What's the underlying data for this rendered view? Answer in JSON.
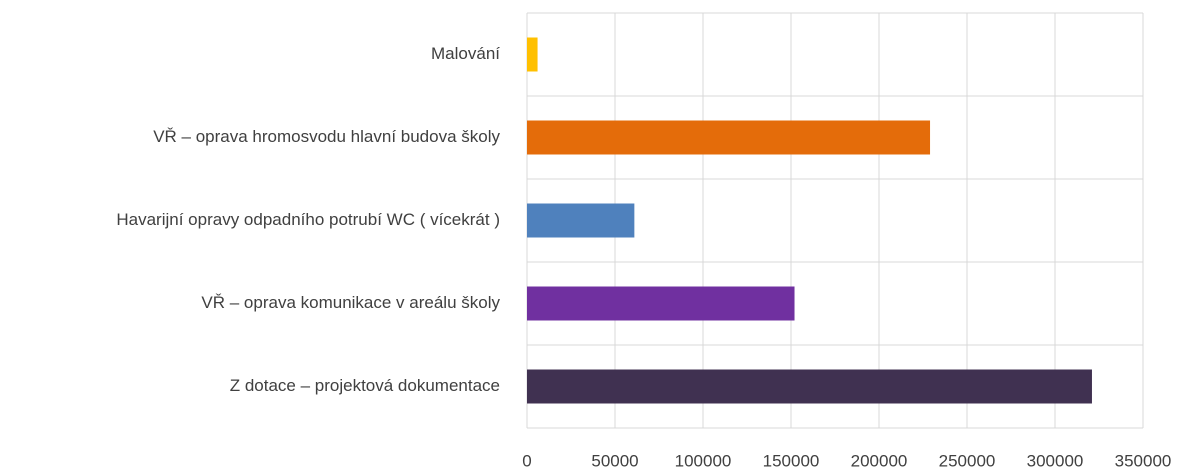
{
  "chart_data": {
    "type": "barh",
    "categories": [
      "Malování",
      "VŘ – oprava hromosvodu hlavní budova školy",
      "Havarijní opravy odpadního potrubí WC ( vícekrát )",
      "VŘ – oprava komunikace v areálu školy",
      "Z dotace – projektová dokumentace"
    ],
    "values": [
      6000,
      229000,
      61000,
      152000,
      321000
    ],
    "colors": [
      "#ffc000",
      "#e46c0a",
      "#4f81bd",
      "#7030a0",
      "#403151"
    ],
    "xlim": [
      0,
      350000
    ],
    "xticks": [
      0,
      50000,
      100000,
      150000,
      200000,
      250000,
      300000,
      350000
    ],
    "grid": true
  }
}
